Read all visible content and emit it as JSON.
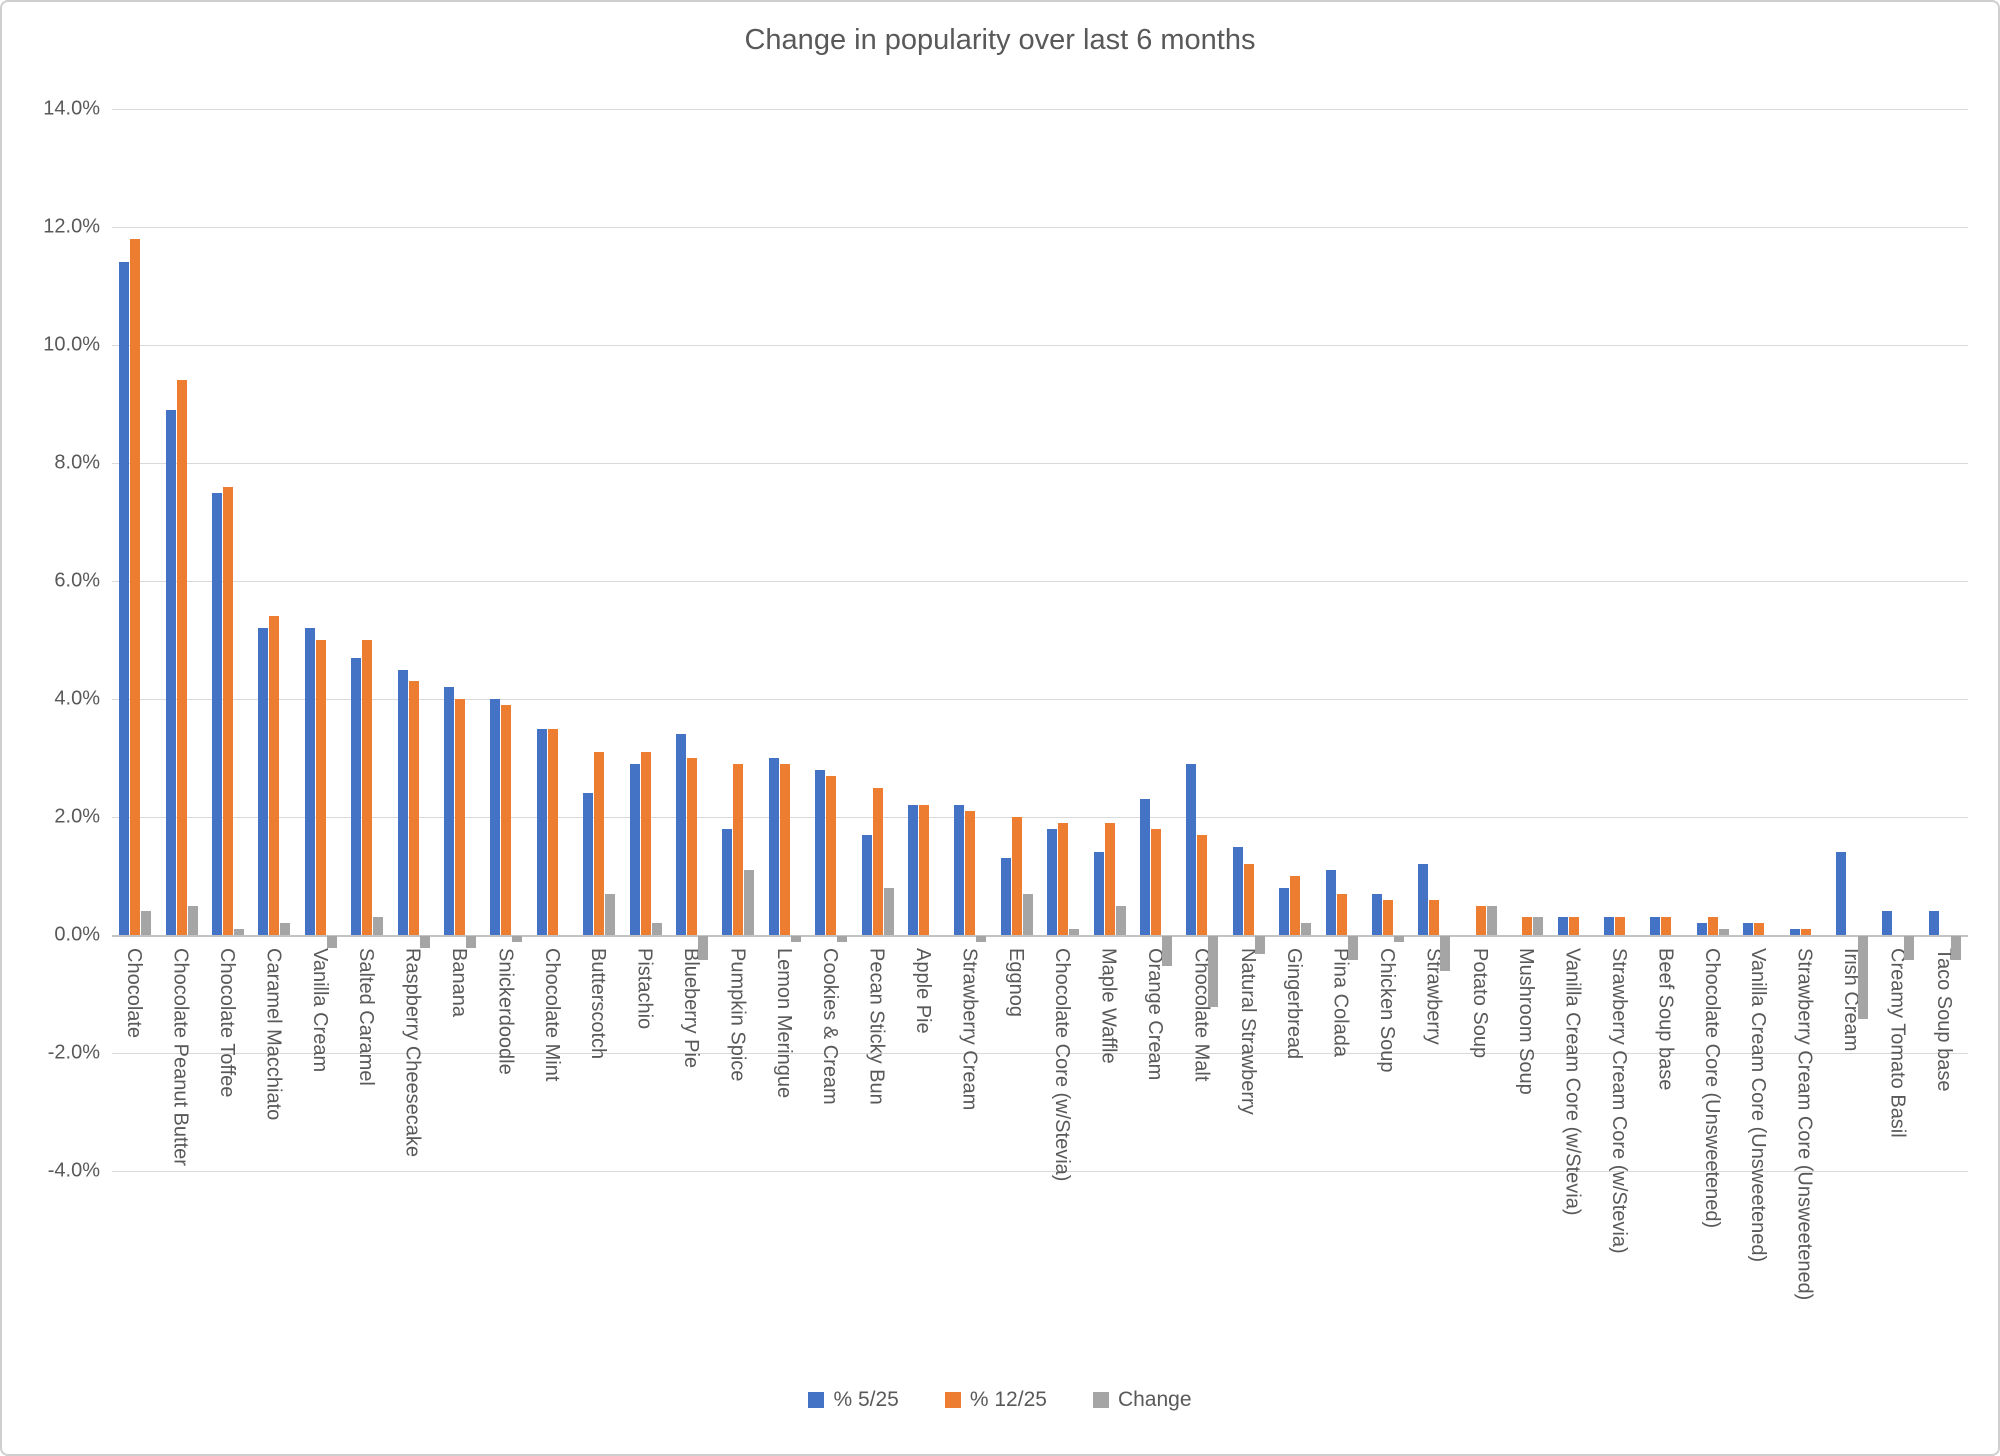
{
  "frame": {
    "background": "#ffffff",
    "border_color": "#cfcfcf"
  },
  "chart_data": {
    "type": "bar",
    "title": "Change in popularity over last 6 months",
    "grid": true,
    "legend_position": "bottom",
    "y_axis": {
      "min": -4.0,
      "max": 14.0,
      "step": 2.0,
      "tick_labels": [
        "14.0%",
        "12.0%",
        "10.0%",
        "8.0%",
        "6.0%",
        "4.0%",
        "2.0%",
        "0.0%",
        "-2.0%",
        "-4.0%"
      ]
    },
    "categories": [
      "Chocolate",
      "Chocolate Peanut Butter",
      "Chocolate Toffee",
      "Caramel Macchiato",
      "Vanilla Cream",
      "Salted Caramel",
      "Raspberry Cheesecake",
      "Banana",
      "Snickerdoodle",
      "Chocolate Mint",
      "Butterscotch",
      "Pistachio",
      "Blueberry Pie",
      "Pumpkin Spice",
      "Lemon Meringue",
      "Cookies & Cream",
      "Pecan Sticky Bun",
      "Apple Pie",
      "Strawberry Cream",
      "Eggnog",
      "Chocolate Core (w/Stevia)",
      "Maple Waffle",
      "Orange Cream",
      "Chocolate Malt",
      "Natural Strawberry",
      "Gingerbread",
      "Pina Colada",
      "Chicken Soup",
      "Strawberry",
      "Potato Soup",
      "Mushroom Soup",
      "Vanilla Cream Core (w/Stevia)",
      "Strawberry Cream Core (w/Stevia)",
      "Beef Soup base",
      "Chocolate Core (Unsweetened)",
      "Vanilla Cream Core (Unsweetened)",
      "Strawberry Cream Core (Unsweetened)",
      "Irish Cream",
      "Creamy Tomato Basil",
      "Taco Soup base"
    ],
    "series": [
      {
        "name": "% 5/25",
        "color": "#4472C4",
        "values": [
          11.4,
          8.9,
          7.5,
          5.2,
          5.2,
          4.7,
          4.5,
          4.2,
          4.0,
          3.5,
          2.4,
          2.9,
          3.4,
          1.8,
          3.0,
          2.8,
          1.7,
          2.2,
          2.2,
          1.3,
          1.8,
          1.4,
          2.3,
          2.9,
          1.5,
          0.8,
          1.1,
          0.7,
          1.2,
          0.0,
          0.0,
          0.3,
          0.3,
          0.3,
          0.2,
          0.2,
          0.1,
          1.4,
          0.4,
          0.4
        ]
      },
      {
        "name": "% 12/25",
        "color": "#ED7D31",
        "values": [
          11.8,
          9.4,
          7.6,
          5.4,
          5.0,
          5.0,
          4.3,
          4.0,
          3.9,
          3.5,
          3.1,
          3.1,
          3.0,
          2.9,
          2.9,
          2.7,
          2.5,
          2.2,
          2.1,
          2.0,
          1.9,
          1.9,
          1.8,
          1.7,
          1.2,
          1.0,
          0.7,
          0.6,
          0.6,
          0.5,
          0.3,
          0.3,
          0.3,
          0.3,
          0.3,
          0.2,
          0.1,
          0.0,
          0.0,
          0.0
        ]
      },
      {
        "name": "Change",
        "color": "#A5A5A5",
        "values": [
          0.4,
          0.5,
          0.1,
          0.2,
          -0.2,
          0.3,
          -0.2,
          -0.2,
          -0.1,
          0.0,
          0.7,
          0.2,
          -0.4,
          1.1,
          -0.1,
          -0.1,
          0.8,
          0.0,
          -0.1,
          0.7,
          0.1,
          0.5,
          -0.5,
          -1.2,
          -0.3,
          0.2,
          -0.4,
          -0.1,
          -0.6,
          0.5,
          0.3,
          0.0,
          0.0,
          0.0,
          0.1,
          0.0,
          0.0,
          -1.4,
          -0.4,
          -0.4
        ]
      }
    ],
    "gridline_color": "#d9d9d9",
    "axis_line_color": "#c3c3c3",
    "text_color": "#595959"
  }
}
